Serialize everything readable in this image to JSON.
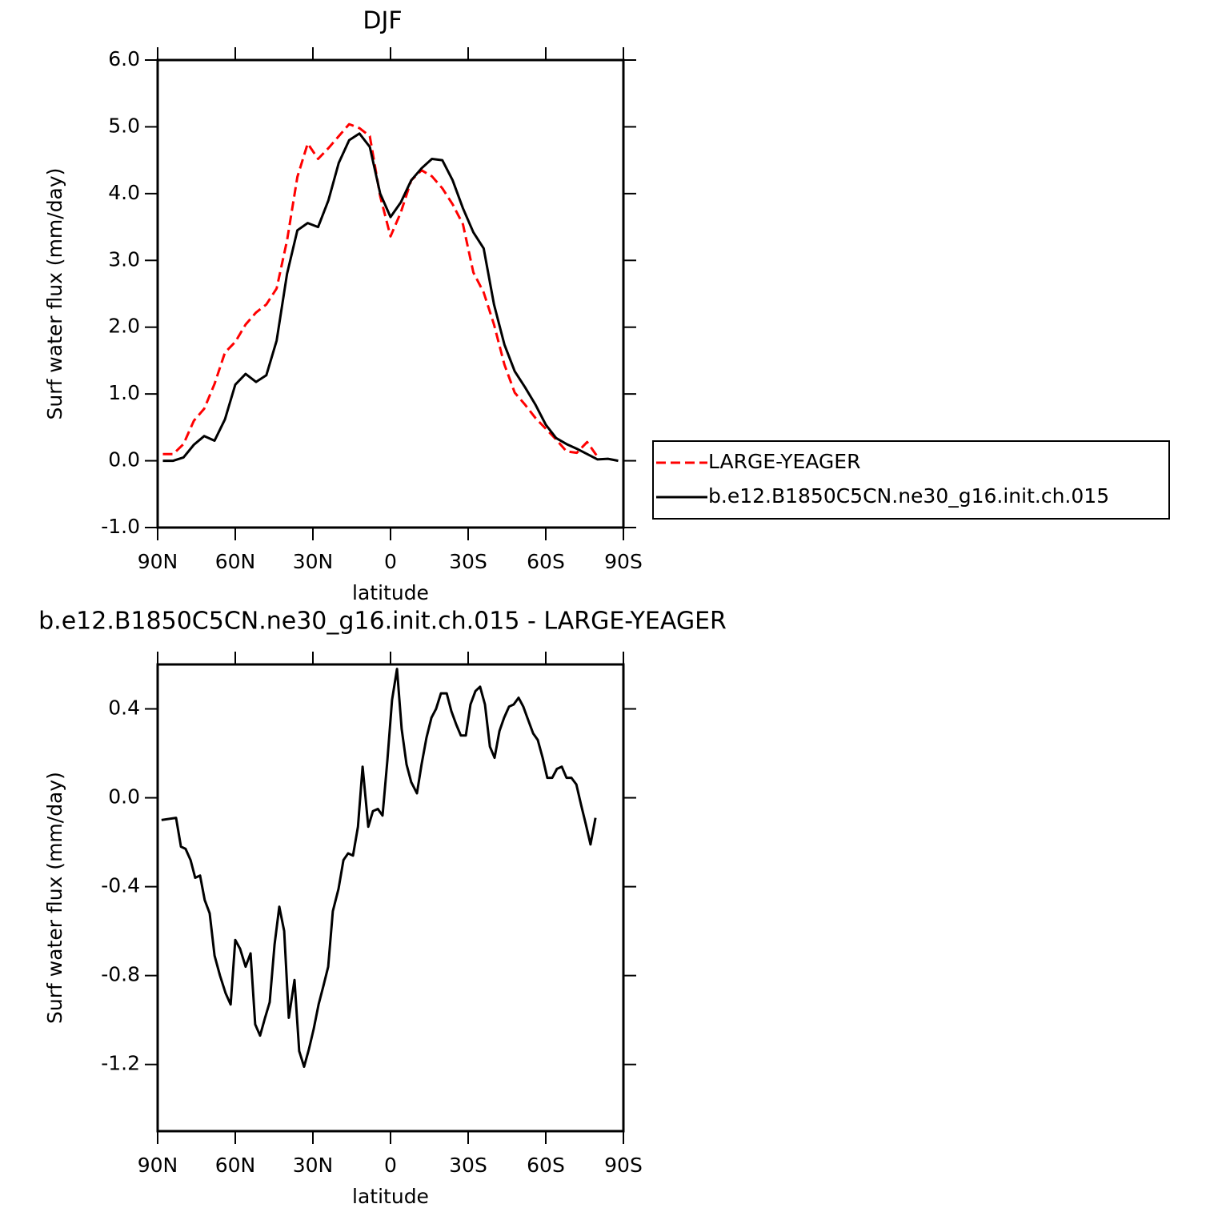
{
  "chart_data": [
    {
      "type": "line",
      "title": "DJF",
      "xlabel": "latitude",
      "ylabel": "Surf water flux (mm/day)",
      "xlim": [
        90,
        -90
      ],
      "xticks": [
        {
          "value": 90,
          "label": "90N"
        },
        {
          "value": 60,
          "label": "60N"
        },
        {
          "value": 30,
          "label": "30N"
        },
        0,
        {
          "value": -30,
          "label": "30S"
        },
        {
          "value": -60,
          "label": "60S"
        },
        {
          "value": -90,
          "label": "90S"
        }
      ],
      "ylim": [
        -1,
        6
      ],
      "yticks": [
        {
          "value": -1,
          "label": "-1.0"
        },
        {
          "value": 0,
          "label": "0.0"
        },
        {
          "value": 1,
          "label": "1.0"
        },
        {
          "value": 2,
          "label": "2.0"
        },
        {
          "value": 3,
          "label": "3.0"
        },
        {
          "value": 4,
          "label": "4.0"
        },
        {
          "value": 5,
          "label": "5.0"
        },
        {
          "value": 6,
          "label": "6.0"
        }
      ],
      "legend": "right",
      "x": [
        88,
        84,
        80,
        76,
        72,
        68,
        64,
        60,
        56,
        52,
        48,
        44,
        40,
        36,
        32,
        28,
        24,
        20,
        16,
        12,
        8,
        4,
        0,
        -4,
        -8,
        -12,
        -16,
        -20,
        -24,
        -28,
        -32,
        -36,
        -40,
        -44,
        -48,
        -52,
        -56,
        -60,
        -64,
        -68,
        -72,
        -76,
        -80,
        -84,
        -88
      ],
      "series": [
        {
          "name": "LARGE-YEAGER",
          "color": "#ff0000",
          "dash": true,
          "values": [
            0.1,
            0.1,
            0.25,
            0.6,
            0.78,
            1.15,
            1.62,
            1.78,
            2.04,
            2.22,
            2.34,
            2.58,
            3.3,
            4.25,
            4.75,
            4.52,
            4.68,
            4.86,
            5.04,
            4.98,
            4.86,
            3.96,
            3.36,
            3.72,
            4.2,
            4.35,
            4.26,
            4.08,
            3.84,
            3.54,
            2.82,
            2.52,
            2.04,
            1.44,
            1.02,
            0.84,
            0.64,
            0.48,
            0.32,
            0.14,
            0.12,
            0.28,
            0.06,
            null,
            null
          ]
        },
        {
          "name": "b.e12.B1850C5CN.ne30_g16.init.ch.015",
          "color": "#000000",
          "dash": false,
          "values": [
            0,
            0,
            0.05,
            0.24,
            0.37,
            0.3,
            0.62,
            1.14,
            1.3,
            1.18,
            1.28,
            1.8,
            2.8,
            3.45,
            3.56,
            3.5,
            3.9,
            4.46,
            4.8,
            4.9,
            4.7,
            4.0,
            3.65,
            3.87,
            4.2,
            4.38,
            4.52,
            4.5,
            4.2,
            3.78,
            3.42,
            3.18,
            2.34,
            1.74,
            1.34,
            1.1,
            0.84,
            0.54,
            0.34,
            0.25,
            0.18,
            0.1,
            0.02,
            0.03,
            0
          ]
        }
      ]
    },
    {
      "type": "line",
      "title": "b.e12.B1850C5CN.ne30_g16.init.ch.015 - LARGE-YEAGER",
      "xlabel": "latitude",
      "ylabel": "Surf water flux (mm/day)",
      "xlim": [
        90,
        -90
      ],
      "xticks": [
        {
          "value": 90,
          "label": "90N"
        },
        {
          "value": 60,
          "label": "60N"
        },
        {
          "value": 30,
          "label": "30N"
        },
        0,
        {
          "value": -30,
          "label": "30S"
        },
        {
          "value": -60,
          "label": "60S"
        },
        {
          "value": -90,
          "label": "90S"
        }
      ],
      "ylim": [
        -1.5,
        0.6
      ],
      "yticks": [
        -1.2,
        -0.8,
        -0.4,
        {
          "value": 0,
          "label": "0.0"
        },
        0.4
      ],
      "color": "#000000",
      "x": [
        88.5,
        82.9,
        81.0,
        79.2,
        77.3,
        75.5,
        73.6,
        71.8,
        69.9,
        68.0,
        65.9,
        63.7,
        61.8,
        60.0,
        58.1,
        56.0,
        54.1,
        52.3,
        50.4,
        48.5,
        46.7,
        44.8,
        43.0,
        41.1,
        39.3,
        37.1,
        35.3,
        33.4,
        31.5,
        29.7,
        27.8,
        26.0,
        24.1,
        22.3,
        20.1,
        18.2,
        16.4,
        14.5,
        12.6,
        10.8,
        8.6,
        6.8,
        4.9,
        3.1,
        1.2,
        -0.6,
        -2.5,
        -4.3,
        -6.2,
        -8.0,
        -10.2,
        -12.0,
        -13.9,
        -15.8,
        -17.6,
        -19.5,
        -21.7,
        -23.5,
        -25.4,
        -27.2,
        -29.1,
        -30.9,
        -32.8,
        -34.6,
        -36.5,
        -38.4,
        -40.2,
        -42.1,
        -43.9,
        -45.8,
        -47.6,
        -49.5,
        -51.3,
        -53.2,
        -55.1,
        -56.9,
        -58.8,
        -60.6,
        -62.5,
        -64.3,
        -66.2,
        -68.0,
        -69.9,
        -71.8,
        -73.6,
        -75.5,
        -77.3,
        -79.2
      ],
      "values": [
        -0.1,
        -0.09,
        -0.22,
        -0.23,
        -0.28,
        -0.36,
        -0.35,
        -0.46,
        -0.52,
        -0.71,
        -0.8,
        -0.88,
        -0.93,
        -0.64,
        -0.68,
        -0.76,
        -0.7,
        -1.02,
        -1.07,
        -0.99,
        -0.92,
        -0.66,
        -0.49,
        -0.6,
        -0.99,
        -0.82,
        -1.14,
        -1.21,
        -1.13,
        -1.04,
        -0.93,
        -0.85,
        -0.76,
        -0.51,
        -0.41,
        -0.28,
        -0.25,
        -0.26,
        -0.13,
        0.14,
        -0.13,
        -0.06,
        -0.05,
        -0.08,
        0.17,
        0.44,
        0.58,
        0.31,
        0.15,
        0.07,
        0.02,
        0.15,
        0.27,
        0.36,
        0.4,
        0.47,
        0.47,
        0.39,
        0.33,
        0.28,
        0.28,
        0.42,
        0.48,
        0.5,
        0.42,
        0.23,
        0.18,
        0.3,
        0.36,
        0.41,
        0.42,
        0.45,
        0.41,
        0.35,
        0.29,
        0.26,
        0.18,
        0.09,
        0.09,
        0.13,
        0.14,
        0.09,
        0.09,
        0.06,
        -0.03,
        -0.12,
        -0.21,
        -0.09
      ]
    }
  ]
}
